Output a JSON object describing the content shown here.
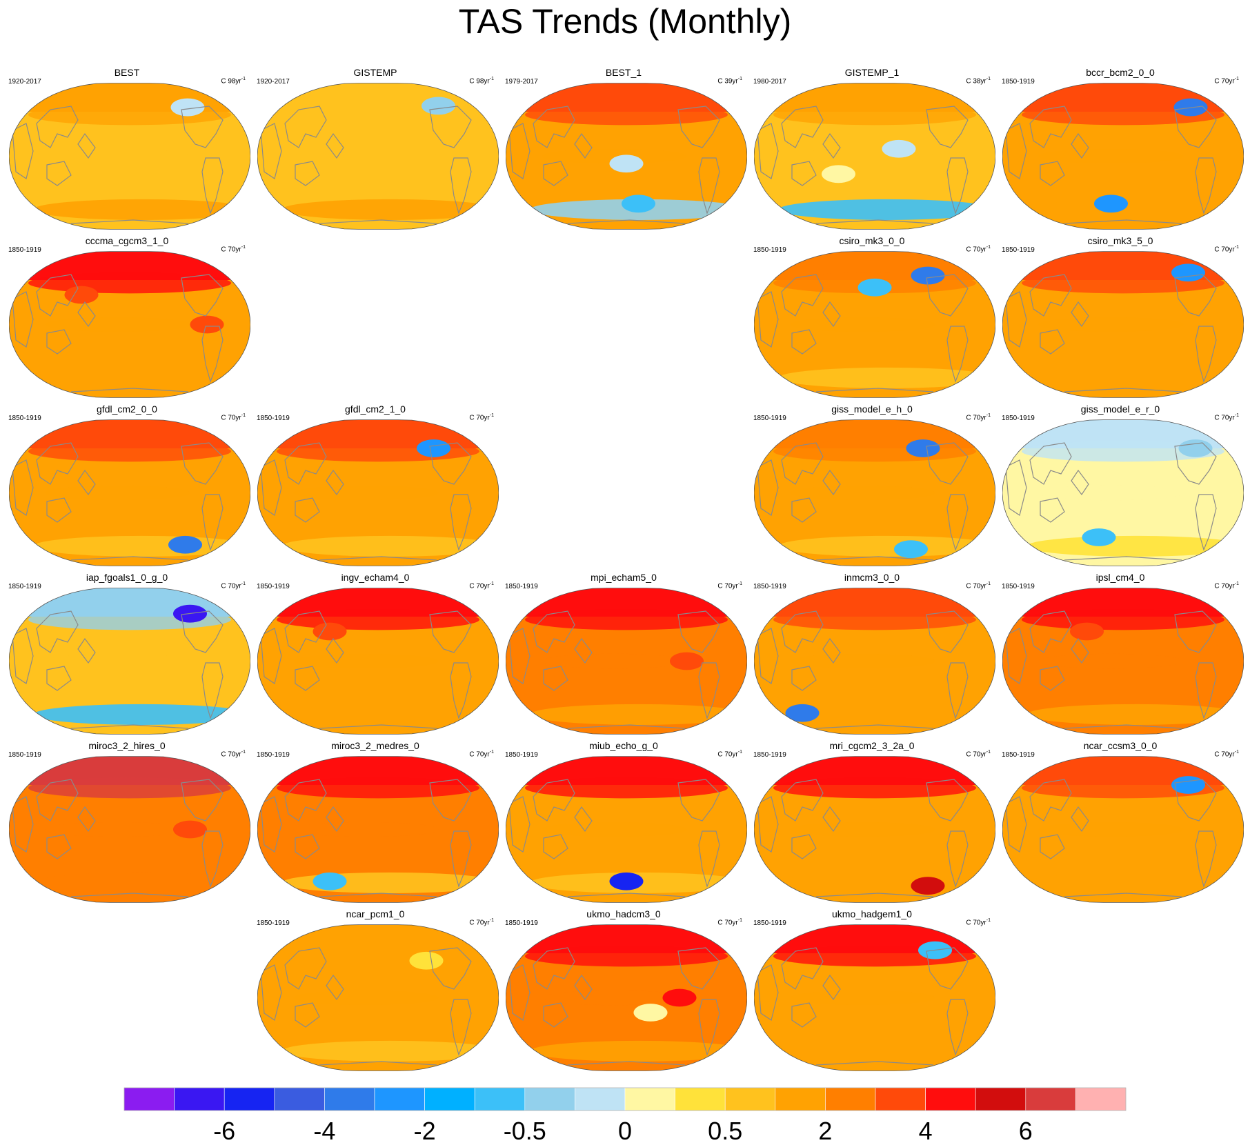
{
  "chart_data": {
    "type": "heatmap",
    "title": "TAS Trends (Monthly)",
    "projection": "Robinson global maps",
    "colorbar": {
      "tick_labels": [
        "-6",
        "-4",
        "-2",
        "-0.5",
        "0",
        "0.5",
        "2",
        "4",
        "6"
      ],
      "colors": [
        "#8b1cf0",
        "#3a17f2",
        "#1624f2",
        "#3a5ce0",
        "#2f7bea",
        "#1e96ff",
        "#00b0ff",
        "#3cc0f8",
        "#92d0ec",
        "#bfe3f5",
        "#fff7a3",
        "#ffe23a",
        "#ffc21e",
        "#ffa202",
        "#ff7f00",
        "#ff4a0a",
        "#ff0d0d",
        "#d20d0d",
        "#d93c3c",
        "#ffb1b1"
      ]
    },
    "panels": [
      {
        "title": "BEST",
        "period": "1920-2017",
        "units": "C 98yr",
        "col": 0,
        "row": 0,
        "base": "#ffc21e",
        "arctic": "#ffa202",
        "south": "#ffa202",
        "blobs": [
          {
            "c": "#bfe3f5",
            "x": 0.74,
            "y": 0.17
          }
        ]
      },
      {
        "title": "GISTEMP",
        "period": "1920-2017",
        "units": "C 98yr",
        "col": 1,
        "row": 0,
        "base": "#ffc21e",
        "arctic": "#ffc21e",
        "south": "#ffa202",
        "blobs": [
          {
            "c": "#92d0ec",
            "x": 0.75,
            "y": 0.16
          }
        ]
      },
      {
        "title": "BEST_1",
        "period": "1979-2017",
        "units": "C 39yr",
        "col": 2,
        "row": 0,
        "base": "#ffa202",
        "arctic": "#ff4a0a",
        "south": "#92d0ec",
        "blobs": [
          {
            "c": "#bfe3f5",
            "x": 0.5,
            "y": 0.55
          },
          {
            "c": "#3cc0f8",
            "x": 0.55,
            "y": 0.82
          }
        ]
      },
      {
        "title": "GISTEMP_1",
        "period": "1980-2017",
        "units": "C 38yr",
        "col": 3,
        "row": 0,
        "base": "#ffc21e",
        "arctic": "#ffa202",
        "south": "#3cc0f8",
        "blobs": [
          {
            "c": "#bfe3f5",
            "x": 0.6,
            "y": 0.45
          },
          {
            "c": "#fff7a3",
            "x": 0.35,
            "y": 0.62
          }
        ]
      },
      {
        "title": "bccr_bcm2_0_0",
        "period": "1850-1919",
        "units": "C 70yr",
        "col": 4,
        "row": 0,
        "base": "#ffa202",
        "arctic": "#ff4a0a",
        "south": "#ffa202",
        "blobs": [
          {
            "c": "#2f7bea",
            "x": 0.78,
            "y": 0.17
          },
          {
            "c": "#1e96ff",
            "x": 0.45,
            "y": 0.82
          }
        ]
      },
      {
        "title": "cccma_cgcm3_1_0",
        "period": "1850-1919",
        "units": "C 70yr",
        "col": 0,
        "row": 1,
        "base": "#ffa202",
        "arctic": "#ff0d0d",
        "south": "#ffa202",
        "blobs": [
          {
            "c": "#ff4a0a",
            "x": 0.3,
            "y": 0.3
          },
          {
            "c": "#ff4a0a",
            "x": 0.82,
            "y": 0.5
          }
        ]
      },
      {
        "title": "csiro_mk3_0_0",
        "period": "1850-1919",
        "units": "C 70yr",
        "col": 3,
        "row": 1,
        "base": "#ffa202",
        "arctic": "#ff7f00",
        "south": "#ffc21e",
        "blobs": [
          {
            "c": "#3cc0f8",
            "x": 0.5,
            "y": 0.25
          },
          {
            "c": "#2f7bea",
            "x": 0.72,
            "y": 0.17
          }
        ]
      },
      {
        "title": "csiro_mk3_5_0",
        "period": "1850-1919",
        "units": "C 70yr",
        "col": 4,
        "row": 1,
        "base": "#ffa202",
        "arctic": "#ff4a0a",
        "south": "#ffa202",
        "blobs": [
          {
            "c": "#1e96ff",
            "x": 0.77,
            "y": 0.15
          }
        ]
      },
      {
        "title": "gfdl_cm2_0_0",
        "period": "1850-1919",
        "units": "C 70yr",
        "col": 0,
        "row": 2,
        "base": "#ffa202",
        "arctic": "#ff4a0a",
        "south": "#ffc21e",
        "blobs": [
          {
            "c": "#2f7bea",
            "x": 0.73,
            "y": 0.85
          }
        ]
      },
      {
        "title": "gfdl_cm2_1_0",
        "period": "1850-1919",
        "units": "C 70yr",
        "col": 1,
        "row": 2,
        "base": "#ffa202",
        "arctic": "#ff4a0a",
        "south": "#ffc21e",
        "blobs": [
          {
            "c": "#1e96ff",
            "x": 0.73,
            "y": 0.2
          }
        ]
      },
      {
        "title": "giss_model_e_h_0",
        "period": "1850-1919",
        "units": "C 70yr",
        "col": 3,
        "row": 2,
        "base": "#ffa202",
        "arctic": "#ff7f00",
        "south": "#ffc21e",
        "blobs": [
          {
            "c": "#2f7bea",
            "x": 0.7,
            "y": 0.2
          },
          {
            "c": "#3cc0f8",
            "x": 0.65,
            "y": 0.88
          }
        ]
      },
      {
        "title": "giss_model_e_r_0",
        "period": "1850-1919",
        "units": "C 70yr",
        "col": 4,
        "row": 2,
        "base": "#fff7a3",
        "arctic": "#bfe3f5",
        "south": "#ffe23a",
        "blobs": [
          {
            "c": "#3cc0f8",
            "x": 0.4,
            "y": 0.8
          },
          {
            "c": "#92d0ec",
            "x": 0.8,
            "y": 0.2
          }
        ]
      },
      {
        "title": "iap_fgoals1_0_g_0",
        "period": "1850-1919",
        "units": "C 70yr",
        "col": 0,
        "row": 3,
        "base": "#ffc21e",
        "arctic": "#92d0ec",
        "south": "#3cc0f8",
        "blobs": [
          {
            "c": "#3a17f2",
            "x": 0.75,
            "y": 0.18
          }
        ]
      },
      {
        "title": "ingv_echam4_0",
        "period": "1850-1919",
        "units": "C 70yr",
        "col": 1,
        "row": 3,
        "base": "#ffa202",
        "arctic": "#ff0d0d",
        "south": "#ffa202",
        "blobs": [
          {
            "c": "#ff4a0a",
            "x": 0.3,
            "y": 0.3
          }
        ]
      },
      {
        "title": "mpi_echam5_0",
        "period": "1850-1919",
        "units": "C 70yr",
        "col": 2,
        "row": 3,
        "base": "#ff7f00",
        "arctic": "#ff0d0d",
        "south": "#ffa202",
        "blobs": [
          {
            "c": "#ff4a0a",
            "x": 0.75,
            "y": 0.5
          }
        ]
      },
      {
        "title": "inmcm3_0_0",
        "period": "1850-1919",
        "units": "C 70yr",
        "col": 3,
        "row": 3,
        "base": "#ffa202",
        "arctic": "#ff4a0a",
        "south": "#ffa202",
        "blobs": [
          {
            "c": "#2f7bea",
            "x": 0.2,
            "y": 0.85
          }
        ]
      },
      {
        "title": "ipsl_cm4_0",
        "period": "1850-1919",
        "units": "C 70yr",
        "col": 4,
        "row": 3,
        "base": "#ff7f00",
        "arctic": "#ff0d0d",
        "south": "#ffa202",
        "blobs": [
          {
            "c": "#ff4a0a",
            "x": 0.35,
            "y": 0.3
          }
        ]
      },
      {
        "title": "miroc3_2_hires_0",
        "period": "1850-1919",
        "units": "C 70yr",
        "col": 0,
        "row": 4,
        "base": "#ff7f00",
        "arctic": "#d93c3c",
        "south": "#ff7f00",
        "blobs": [
          {
            "c": "#ff4a0a",
            "x": 0.75,
            "y": 0.5
          }
        ]
      },
      {
        "title": "miroc3_2_medres_0",
        "period": "1850-1919",
        "units": "C 70yr",
        "col": 1,
        "row": 4,
        "base": "#ff7f00",
        "arctic": "#ff0d0d",
        "south": "#ffc21e",
        "blobs": [
          {
            "c": "#3cc0f8",
            "x": 0.3,
            "y": 0.85
          }
        ]
      },
      {
        "title": "miub_echo_g_0",
        "period": "1850-1919",
        "units": "C 70yr",
        "col": 2,
        "row": 4,
        "base": "#ffa202",
        "arctic": "#ff0d0d",
        "south": "#ffc21e",
        "blobs": [
          {
            "c": "#1624f2",
            "x": 0.5,
            "y": 0.85
          }
        ]
      },
      {
        "title": "mri_cgcm2_3_2a_0",
        "period": "1850-1919",
        "units": "C 70yr",
        "col": 3,
        "row": 4,
        "base": "#ffa202",
        "arctic": "#ff0d0d",
        "south": "#ffa202",
        "blobs": [
          {
            "c": "#d20d0d",
            "x": 0.72,
            "y": 0.88
          }
        ]
      },
      {
        "title": "ncar_ccsm3_0_0",
        "period": "1850-1919",
        "units": "C 70yr",
        "col": 4,
        "row": 4,
        "base": "#ffa202",
        "arctic": "#ff4a0a",
        "south": "#ffa202",
        "blobs": [
          {
            "c": "#1e96ff",
            "x": 0.77,
            "y": 0.2
          }
        ]
      },
      {
        "title": "ncar_pcm1_0",
        "period": "1850-1919",
        "units": "C 70yr",
        "col": 1,
        "row": 5,
        "base": "#ffa202",
        "arctic": "#ffa202",
        "south": "#ffc21e",
        "blobs": [
          {
            "c": "#ffe23a",
            "x": 0.7,
            "y": 0.25
          }
        ]
      },
      {
        "title": "ukmo_hadcm3_0",
        "period": "1850-1919",
        "units": "C 70yr",
        "col": 2,
        "row": 5,
        "base": "#ff7f00",
        "arctic": "#ff0d0d",
        "south": "#ffa202",
        "blobs": [
          {
            "c": "#ff0d0d",
            "x": 0.72,
            "y": 0.5
          },
          {
            "c": "#fff7a3",
            "x": 0.6,
            "y": 0.6
          }
        ]
      },
      {
        "title": "ukmo_hadgem1_0",
        "period": "1850-1919",
        "units": "C 70yr",
        "col": 3,
        "row": 5,
        "base": "#ffa202",
        "arctic": "#ff0d0d",
        "south": "#ffa202",
        "blobs": [
          {
            "c": "#3cc0f8",
            "x": 0.75,
            "y": 0.18
          }
        ]
      }
    ]
  },
  "colors": {
    "coastline": "#8a8a8a",
    "label_text": "#000000"
  }
}
